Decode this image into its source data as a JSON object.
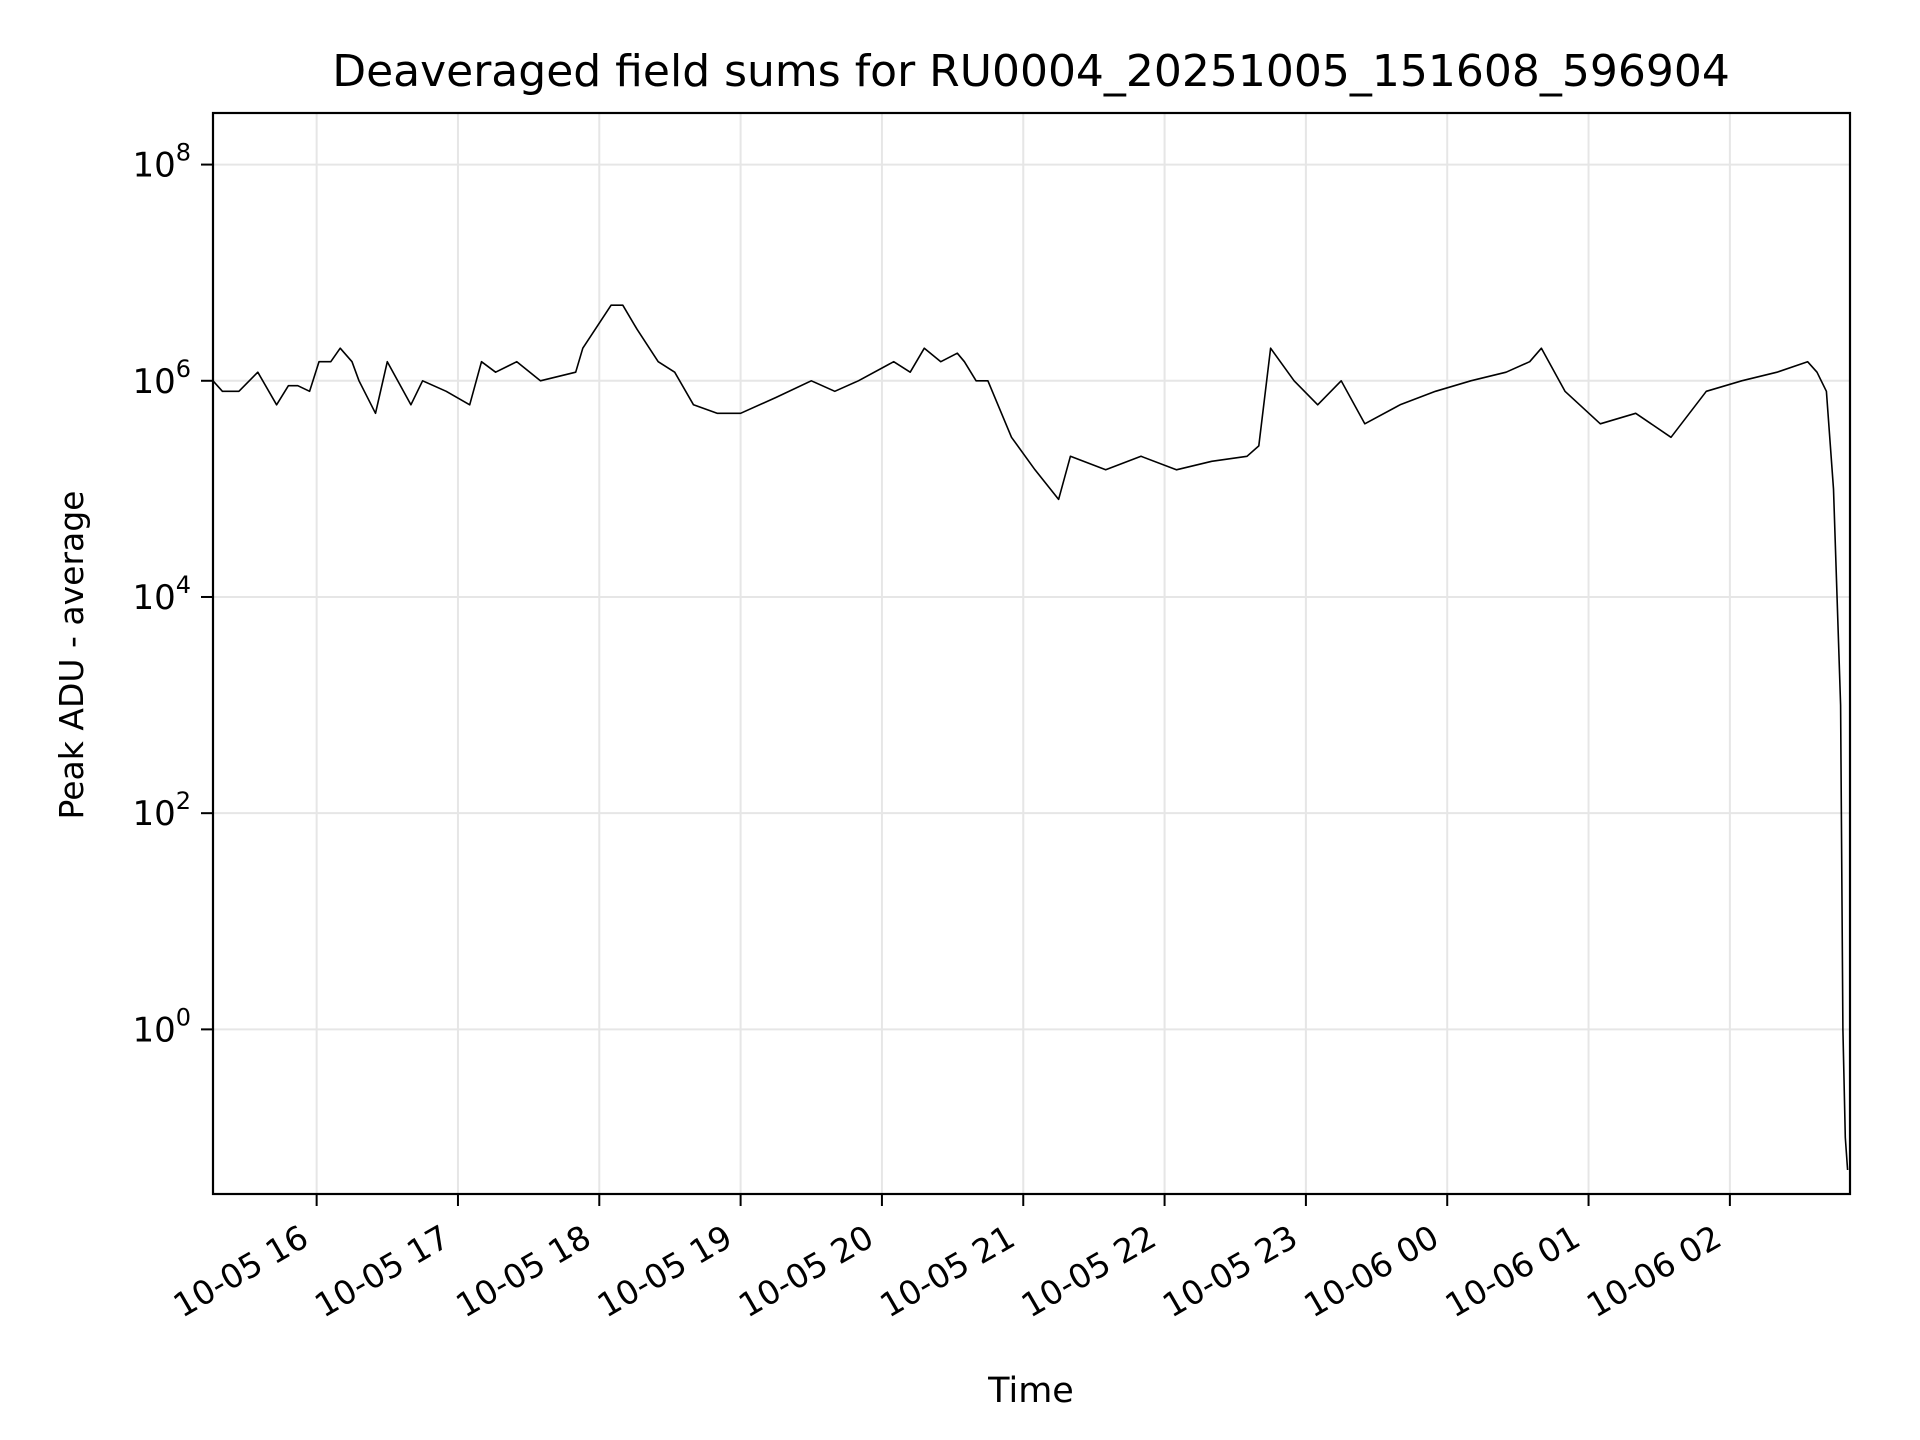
{
  "chart_data": {
    "type": "line",
    "title": "Deaveraged field sums for RU0004_20251005_151608_596904",
    "xlabel": "Time",
    "ylabel": "Peak ADU - average",
    "y_scale": "log",
    "ylim": [
      0.03,
      300000000
    ],
    "xlim": [
      "2025-10-05 15:16",
      "2025-10-06 02:51"
    ],
    "grid": true,
    "line_color": "#000000",
    "x_ticks": [
      {
        "t": "2025-10-05 16:00",
        "label": "10-05 16"
      },
      {
        "t": "2025-10-05 17:00",
        "label": "10-05 17"
      },
      {
        "t": "2025-10-05 18:00",
        "label": "10-05 18"
      },
      {
        "t": "2025-10-05 19:00",
        "label": "10-05 19"
      },
      {
        "t": "2025-10-05 20:00",
        "label": "10-05 20"
      },
      {
        "t": "2025-10-05 21:00",
        "label": "10-05 21"
      },
      {
        "t": "2025-10-05 22:00",
        "label": "10-05 22"
      },
      {
        "t": "2025-10-05 23:00",
        "label": "10-05 23"
      },
      {
        "t": "2025-10-06 00:00",
        "label": "10-06 00"
      },
      {
        "t": "2025-10-06 01:00",
        "label": "10-06 01"
      },
      {
        "t": "2025-10-06 02:00",
        "label": "10-06 02"
      }
    ],
    "y_ticks": [
      {
        "value": 1,
        "base": "10",
        "exp": "0"
      },
      {
        "value": 100,
        "base": "10",
        "exp": "2"
      },
      {
        "value": 10000,
        "base": "10",
        "exp": "4"
      },
      {
        "value": 1000000,
        "base": "10",
        "exp": "6"
      },
      {
        "value": 100000000,
        "base": "10",
        "exp": "8"
      }
    ],
    "series": [
      {
        "x": [
          "2025-10-05 15:16",
          "2025-10-05 15:20",
          "2025-10-05 15:27",
          "2025-10-05 15:35",
          "2025-10-05 15:43",
          "2025-10-05 15:48",
          "2025-10-05 15:52",
          "2025-10-05 15:57",
          "2025-10-05 16:01",
          "2025-10-05 16:06",
          "2025-10-05 16:10",
          "2025-10-05 16:15",
          "2025-10-05 16:18",
          "2025-10-05 16:25",
          "2025-10-05 16:30",
          "2025-10-05 16:40",
          "2025-10-05 16:45",
          "2025-10-05 16:55",
          "2025-10-05 17:05",
          "2025-10-05 17:10",
          "2025-10-05 17:16",
          "2025-10-05 17:25",
          "2025-10-05 17:35",
          "2025-10-05 17:50",
          "2025-10-05 17:53",
          "2025-10-05 18:05",
          "2025-10-05 18:10",
          "2025-10-05 18:16",
          "2025-10-05 18:25",
          "2025-10-05 18:32",
          "2025-10-05 18:40",
          "2025-10-05 18:50",
          "2025-10-05 19:00",
          "2025-10-05 19:15",
          "2025-10-05 19:30",
          "2025-10-05 19:40",
          "2025-10-05 19:50",
          "2025-10-05 20:05",
          "2025-10-05 20:12",
          "2025-10-05 20:18",
          "2025-10-05 20:25",
          "2025-10-05 20:32",
          "2025-10-05 20:35",
          "2025-10-05 20:40",
          "2025-10-05 20:45",
          "2025-10-05 20:55",
          "2025-10-05 21:05",
          "2025-10-05 21:15",
          "2025-10-05 21:20",
          "2025-10-05 21:35",
          "2025-10-05 21:50",
          "2025-10-05 22:05",
          "2025-10-05 22:20",
          "2025-10-05 22:35",
          "2025-10-05 22:40",
          "2025-10-05 22:45",
          "2025-10-05 22:55",
          "2025-10-05 23:05",
          "2025-10-05 23:15",
          "2025-10-05 23:25",
          "2025-10-05 23:40",
          "2025-10-05 23:55",
          "2025-10-06 00:10",
          "2025-10-06 00:25",
          "2025-10-06 00:35",
          "2025-10-06 00:40",
          "2025-10-06 00:50",
          "2025-10-06 01:05",
          "2025-10-06 01:20",
          "2025-10-06 01:35",
          "2025-10-06 01:50",
          "2025-10-06 02:05",
          "2025-10-06 02:20",
          "2025-10-06 02:33",
          "2025-10-06 02:37",
          "2025-10-06 02:41",
          "2025-10-06 02:44",
          "2025-10-06 02:47",
          "2025-10-06 02:48",
          "2025-10-06 02:49",
          "2025-10-06 02:50"
        ],
        "y": [
          1000000,
          800000,
          800000,
          1200000,
          600000,
          900000,
          900000,
          800000,
          1500000,
          1500000,
          2000000,
          1500000,
          1000000,
          500000,
          1500000,
          600000,
          1000000,
          800000,
          600000,
          1500000,
          1200000,
          1500000,
          1000000,
          1200000,
          2000000,
          5000000,
          5000000,
          3000000,
          1500000,
          1200000,
          600000,
          500000,
          500000,
          700000,
          1000000,
          800000,
          1000000,
          1500000,
          1200000,
          2000000,
          1500000,
          1800000,
          1500000,
          1000000,
          1000000,
          300000,
          150000,
          80000,
          200000,
          150000,
          200000,
          150000,
          180000,
          200000,
          250000,
          2000000,
          1000000,
          600000,
          1000000,
          400000,
          600000,
          800000,
          1000000,
          1200000,
          1500000,
          2000000,
          800000,
          400000,
          500000,
          300000,
          800000,
          1000000,
          1200000,
          1500000,
          1200000,
          800000,
          100000,
          1000,
          1,
          0.1,
          0.05
        ]
      }
    ]
  }
}
